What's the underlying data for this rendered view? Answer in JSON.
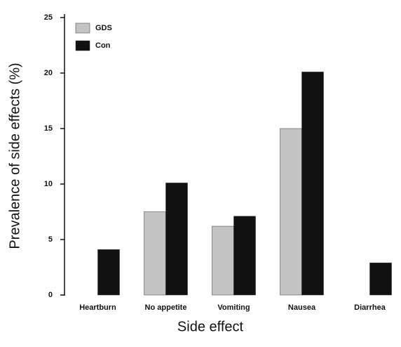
{
  "chart_data": {
    "type": "bar",
    "x_label": "Side effect",
    "y_label": "Prevalence of side effects (%)",
    "categories": [
      "Heartburn",
      "No appetite",
      "Vomiting",
      "Nausea",
      "Diarrhea"
    ],
    "series": [
      {
        "name": "GDS",
        "color": "#c4c4c4",
        "values": [
          0,
          7.5,
          6.2,
          15,
          0
        ]
      },
      {
        "name": "Con",
        "color": "#111111",
        "values": [
          4.1,
          10.1,
          7.1,
          20.1,
          2.9
        ]
      }
    ],
    "ylim": [
      0,
      25
    ],
    "yticks": [
      0,
      5,
      10,
      15,
      20,
      25
    ],
    "legend": "upper left"
  }
}
